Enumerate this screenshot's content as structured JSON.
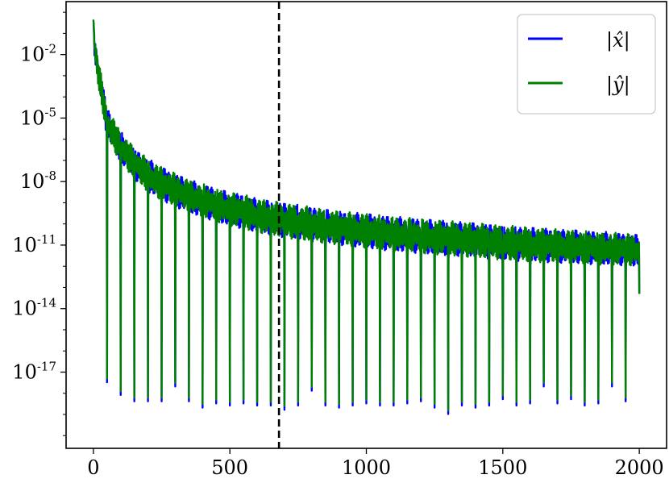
{
  "chart_data": {
    "type": "line",
    "title": "",
    "xlabel": "",
    "ylabel": "",
    "xlim": [
      -100,
      2100
    ],
    "ylim_log10": [
      -20.6,
      0.5
    ],
    "y_scale": "log",
    "grid": false,
    "legend_position": "top-right",
    "x_ticks": [
      {
        "value": 0,
        "label": "0"
      },
      {
        "value": 500,
        "label": "500"
      },
      {
        "value": 1000,
        "label": "1000"
      },
      {
        "value": 1500,
        "label": "1500"
      },
      {
        "value": 2000,
        "label": "2000"
      }
    ],
    "y_ticks": [
      {
        "exp": -2,
        "base": "10",
        "sup": "-2"
      },
      {
        "exp": -5,
        "base": "10",
        "sup": "-5"
      },
      {
        "exp": -8,
        "base": "10",
        "sup": "-8"
      },
      {
        "exp": -11,
        "base": "10",
        "sup": "-11"
      },
      {
        "exp": -14,
        "base": "10",
        "sup": "-14"
      },
      {
        "exp": -17,
        "base": "10",
        "sup": "-17"
      }
    ],
    "vertical_marker": {
      "x": 680,
      "style": "dashed",
      "color": "#000000"
    },
    "series": [
      {
        "name": "|x̂|",
        "color": "#0000ff"
      },
      {
        "name": "|ŷ|",
        "color": "#008000"
      }
    ],
    "envelope": {
      "x": [
        0,
        5,
        50,
        100,
        150,
        200,
        250,
        300,
        350,
        400,
        450,
        500,
        550,
        600,
        650,
        700,
        800,
        900,
        1000,
        1100,
        1200,
        1300,
        1400,
        1500,
        1600,
        1700,
        1800,
        1900,
        2000
      ],
      "upper_log10": [
        -0.2,
        -1.2,
        -4.5,
        -5.6,
        -6.4,
        -6.9,
        -7.3,
        -7.6,
        -7.9,
        -8.1,
        -8.3,
        -8.5,
        -8.6,
        -8.8,
        -8.9,
        -9.0,
        -9.2,
        -9.4,
        -9.5,
        -9.65,
        -9.75,
        -9.85,
        -9.95,
        -10.05,
        -10.15,
        -10.25,
        -10.3,
        -10.4,
        -10.5
      ],
      "lower_log10": [
        -0.5,
        -2.5,
        -6.0,
        -7.1,
        -7.9,
        -8.5,
        -8.9,
        -9.2,
        -9.5,
        -9.7,
        -9.9,
        -10.1,
        -10.25,
        -10.4,
        -10.55,
        -10.65,
        -10.85,
        -11.0,
        -11.15,
        -11.3,
        -11.4,
        -11.5,
        -11.6,
        -11.7,
        -11.8,
        -11.85,
        -11.9,
        -11.95,
        -12.0
      ]
    },
    "dips": {
      "period": 50,
      "first_x": 50,
      "last_x": 1950,
      "min_log10": [
        -17.3,
        -17.9,
        -18.2,
        -18.2,
        -18.2,
        -17.5,
        -18.2,
        -18.5,
        -18.3,
        -18.4,
        -18.3,
        -18.4,
        -18.4,
        -18.6,
        -18.4,
        -17.7,
        -18.4,
        -18.5,
        -18.4,
        -18.3,
        -18.4,
        -18.4,
        -18.3,
        -18.2,
        -18.5,
        -18.8,
        -18.4,
        -18.5,
        -18.4,
        -18.1,
        -18.4,
        -18.3,
        -17.5,
        -18.3,
        -18.1,
        -18.4,
        -18.3,
        -17.5,
        -18.2
      ]
    },
    "end_value_log10": {
      "x": 2000,
      "y": -13.3
    }
  }
}
